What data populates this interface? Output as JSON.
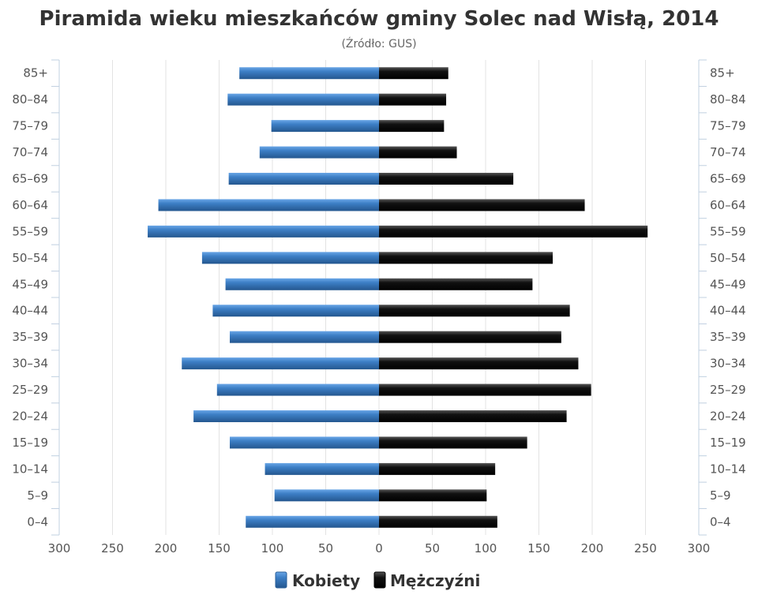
{
  "chart_data": {
    "type": "bar",
    "orientation": "horizontal-population-pyramid",
    "title": "Piramida wieku mieszkańców gminy Solec nad Wisłą, 2014",
    "subtitle": "(Źródło: GUS)",
    "categories": [
      "85+",
      "80–84",
      "75–79",
      "70–74",
      "65–69",
      "60–64",
      "55–59",
      "50–54",
      "45–49",
      "40–44",
      "35–39",
      "30–34",
      "25–29",
      "20–24",
      "15–19",
      "10–14",
      "5–9",
      "0–4"
    ],
    "series": [
      {
        "name": "Kobiety",
        "color": "#3d7fc6",
        "side": "left",
        "values": [
          131,
          142,
          101,
          112,
          141,
          207,
          217,
          166,
          144,
          156,
          140,
          185,
          152,
          174,
          140,
          107,
          98,
          125
        ]
      },
      {
        "name": "Mężczyźni",
        "color": "#111111",
        "side": "right",
        "values": [
          65,
          63,
          61,
          73,
          126,
          193,
          252,
          163,
          144,
          179,
          171,
          187,
          199,
          176,
          139,
          109,
          101,
          111
        ]
      }
    ],
    "xlim": [
      -300,
      300
    ],
    "xticks": [
      -300,
      -250,
      -200,
      -150,
      -100,
      -50,
      0,
      50,
      100,
      150,
      200,
      250,
      300
    ],
    "xtick_labels": [
      "300",
      "250",
      "200",
      "150",
      "100",
      "50",
      "0",
      "50",
      "100",
      "150",
      "200",
      "250",
      "300"
    ],
    "grid": true,
    "legend_position": "bottom-center"
  }
}
